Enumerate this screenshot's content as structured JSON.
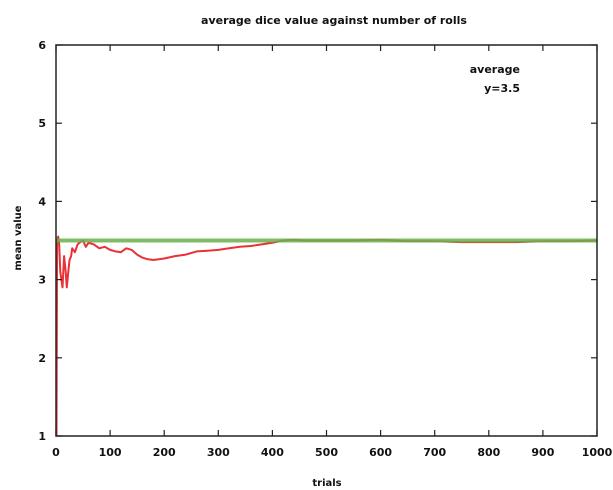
{
  "chart_data": {
    "type": "line",
    "title": "average dice value against number of rolls",
    "xlabel": "trials",
    "ylabel": "mean value",
    "xlim": [
      0,
      1000
    ],
    "ylim": [
      1,
      6
    ],
    "xticks": [
      "0",
      "100",
      "200",
      "300",
      "400",
      "500",
      "600",
      "700",
      "800",
      "900",
      "1000"
    ],
    "yticks": [
      "1",
      "2",
      "3",
      "4",
      "5",
      "6"
    ],
    "grid": false,
    "legend": {
      "placement": "top-right",
      "entries": [
        "average",
        "y=3.5"
      ]
    },
    "series": [
      {
        "name": "average",
        "color": "#e8262b",
        "x": [
          1,
          2,
          4,
          6,
          8,
          10,
          12,
          15,
          18,
          20,
          22,
          25,
          28,
          30,
          35,
          40,
          45,
          50,
          55,
          60,
          70,
          80,
          90,
          100,
          110,
          120,
          130,
          140,
          150,
          160,
          170,
          180,
          190,
          200,
          220,
          240,
          260,
          280,
          300,
          320,
          340,
          360,
          380,
          400,
          420,
          440,
          460,
          480,
          500,
          550,
          600,
          650,
          700,
          750,
          800,
          850,
          900,
          950,
          1000
        ],
        "y": [
          1.0,
          3.5,
          3.55,
          3.45,
          3.1,
          3.0,
          2.9,
          3.3,
          3.1,
          2.9,
          3.05,
          3.25,
          3.3,
          3.4,
          3.35,
          3.45,
          3.48,
          3.5,
          3.42,
          3.47,
          3.45,
          3.4,
          3.42,
          3.38,
          3.36,
          3.35,
          3.4,
          3.38,
          3.32,
          3.28,
          3.26,
          3.25,
          3.26,
          3.27,
          3.3,
          3.32,
          3.36,
          3.37,
          3.38,
          3.4,
          3.42,
          3.43,
          3.45,
          3.47,
          3.5,
          3.51,
          3.5,
          3.5,
          3.5,
          3.5,
          3.51,
          3.49,
          3.49,
          3.48,
          3.48,
          3.48,
          3.49,
          3.49,
          3.5
        ]
      },
      {
        "name": "y=3.5",
        "color": "#6ab04c",
        "x": [
          0,
          1000
        ],
        "y": [
          3.5,
          3.5
        ]
      }
    ]
  }
}
